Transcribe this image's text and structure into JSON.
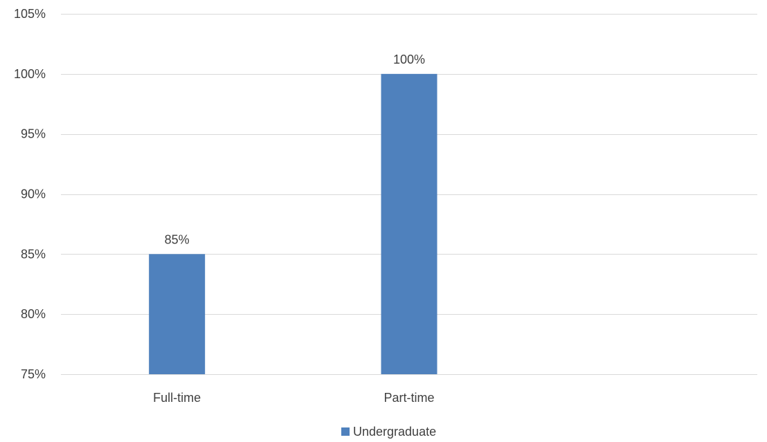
{
  "chart_data": {
    "type": "bar",
    "categories": [
      "Full-time",
      "Part-time",
      ""
    ],
    "series": [
      {
        "name": "Undergraduate",
        "values": [
          85,
          100,
          null
        ],
        "color": "#4f81bd"
      }
    ],
    "data_labels": [
      "85%",
      "100%",
      ""
    ],
    "ylim": [
      75,
      105
    ],
    "yticks": [
      75,
      80,
      85,
      90,
      95,
      100,
      105
    ],
    "ytick_labels": [
      "75%",
      "80%",
      "85%",
      "90%",
      "95%",
      "100%",
      "105%"
    ],
    "y_unit": "%",
    "title": "",
    "xlabel": "",
    "ylabel": "",
    "grid": true,
    "gridline_color": "#d9d9d9",
    "legend": {
      "position": "bottom",
      "entries": [
        "Undergraduate"
      ]
    }
  }
}
